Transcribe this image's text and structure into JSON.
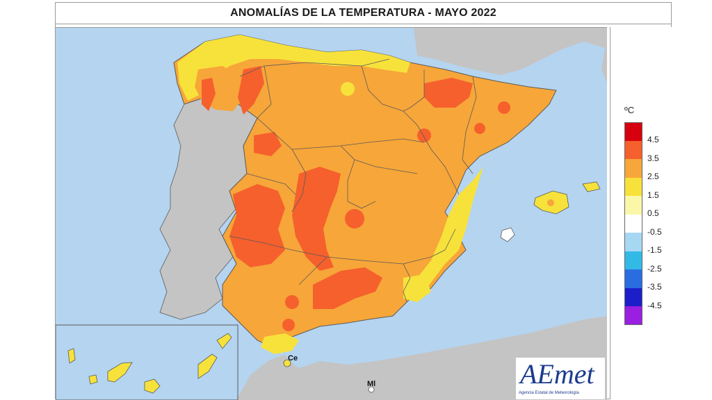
{
  "title": "ANOMALÍAS DE LA TEMPERATURA - MAYO 2022",
  "legend": {
    "unit": "ºC",
    "bins": [
      {
        "label": "4.5",
        "color": "#d7000f"
      },
      {
        "label": "3.5",
        "color": "#f5602d"
      },
      {
        "label": "2.5",
        "color": "#f7a639"
      },
      {
        "label": "1.5",
        "color": "#f7e23b"
      },
      {
        "label": "0.5",
        "color": "#fbf7a8"
      },
      {
        "label": "-0.5",
        "color": "#ffffff"
      },
      {
        "label": "-1.5",
        "color": "#a7d8f3"
      },
      {
        "label": "-2.5",
        "color": "#33b9e6"
      },
      {
        "label": "-3.5",
        "color": "#2a6de1"
      },
      {
        "label": "-4.5",
        "color": "#1c1fc9"
      },
      {
        "label": "",
        "color": "#9a1fe0"
      }
    ]
  },
  "cities": {
    "ceuta": "Ce",
    "melilla": "Ml"
  },
  "logo": {
    "text": "AEmet",
    "subtitle": "Agencia Estatal de Meteorología"
  },
  "colors": {
    "sea": "#b4d4f0",
    "land_foreign": "#c4c4c4",
    "border": "#5a5a5a"
  }
}
